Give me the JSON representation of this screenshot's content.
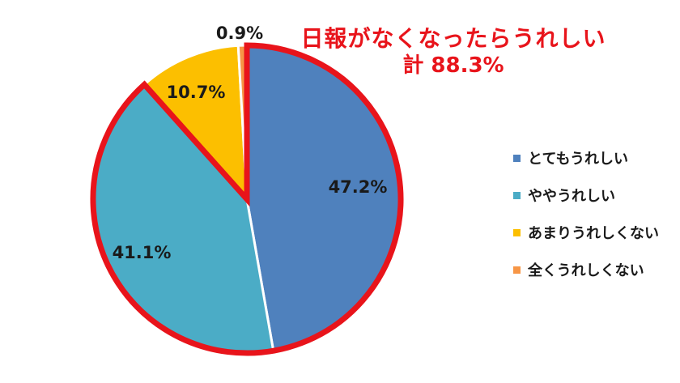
{
  "chart_data": {
    "type": "pie",
    "title": "日報がなくなったらうれしい",
    "subtitle": "計 88.3%",
    "categories": [
      "とてもうれしい",
      "ややうれしい",
      "あまりうれしくない",
      "全くうれしくない"
    ],
    "values": [
      47.2,
      41.1,
      10.7,
      0.9
    ],
    "data_labels": [
      "47.2%",
      "41.1%",
      "10.7%",
      "0.9%"
    ],
    "colors": [
      "#4f81bd",
      "#4bacc6",
      "#fcbf00",
      "#f79646"
    ],
    "highlight_color": "#e8141b",
    "legend_position": "right"
  }
}
